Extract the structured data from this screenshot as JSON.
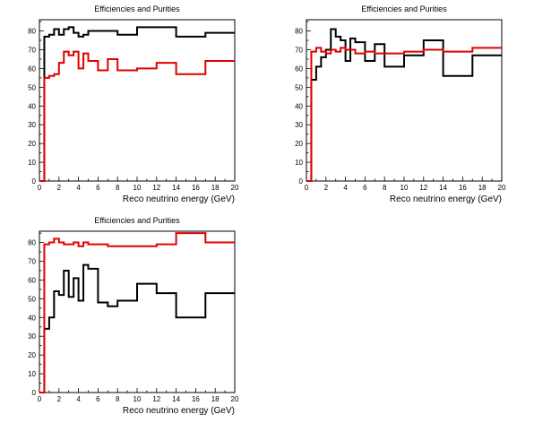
{
  "chart_data": [
    {
      "type": "line",
      "title": "Efficiencies and Purities",
      "xlabel": "Reco neutrino energy (GeV)",
      "ylabel": "",
      "xlim": [
        0,
        20
      ],
      "ylim": [
        0,
        86
      ],
      "xticks": [
        "0",
        "2",
        "4",
        "6",
        "8",
        "10",
        "12",
        "14",
        "16",
        "18",
        "20"
      ],
      "yticks": [
        "0",
        "10",
        "20",
        "30",
        "40",
        "50",
        "60",
        "70",
        "80"
      ],
      "series": [
        {
          "color": "#000000",
          "edges": [
            0,
            0.5,
            1,
            1.5,
            2,
            2.5,
            3,
            3.5,
            4,
            4.5,
            5,
            6,
            7,
            8,
            10,
            12,
            14,
            17,
            20
          ],
          "values": [
            0,
            77,
            78,
            81,
            78,
            81,
            82,
            79,
            77,
            78,
            80,
            80,
            80,
            78,
            82,
            82,
            77,
            79
          ]
        },
        {
          "color": "#e00000",
          "edges": [
            0,
            0.5,
            1,
            1.5,
            2,
            2.5,
            3,
            3.5,
            4,
            4.5,
            5,
            6,
            7,
            8,
            10,
            12,
            14,
            17,
            20
          ],
          "values": [
            0,
            55,
            56,
            57,
            63,
            69,
            67,
            69,
            60,
            68,
            64,
            59,
            65,
            59,
            60,
            63,
            57,
            64
          ]
        }
      ]
    },
    {
      "type": "line",
      "title": "Efficiencies and Purities",
      "xlabel": "Reco neutrino energy (GeV)",
      "ylabel": "",
      "xlim": [
        0,
        20
      ],
      "ylim": [
        0,
        86
      ],
      "xticks": [
        "0",
        "2",
        "4",
        "6",
        "8",
        "10",
        "12",
        "14",
        "16",
        "18",
        "20"
      ],
      "yticks": [
        "0",
        "10",
        "20",
        "30",
        "40",
        "50",
        "60",
        "70",
        "80"
      ],
      "series": [
        {
          "color": "#000000",
          "edges": [
            0,
            0.5,
            1,
            1.5,
            2,
            2.5,
            3,
            3.5,
            4,
            4.5,
            5,
            6,
            7,
            8,
            10,
            12,
            14,
            17,
            20
          ],
          "values": [
            0,
            54,
            61,
            66,
            70,
            81,
            77,
            75,
            64,
            76,
            74,
            64,
            73,
            61,
            67,
            75,
            56,
            67
          ]
        },
        {
          "color": "#e00000",
          "edges": [
            0,
            0.5,
            1,
            1.5,
            2,
            2.5,
            3,
            3.5,
            4,
            4.5,
            5,
            6,
            7,
            8,
            10,
            12,
            14,
            17,
            20
          ],
          "values": [
            0,
            69,
            71,
            69,
            68,
            70,
            69,
            71,
            70,
            70,
            68,
            69,
            68,
            68,
            69,
            70,
            69,
            71
          ]
        }
      ]
    },
    {
      "type": "line",
      "title": "Efficiencies and Purities",
      "xlabel": "Reco neutrino energy (GeV)",
      "ylabel": "",
      "xlim": [
        0,
        20
      ],
      "ylim": [
        0,
        86
      ],
      "xticks": [
        "0",
        "2",
        "4",
        "6",
        "8",
        "10",
        "12",
        "14",
        "16",
        "18",
        "20"
      ],
      "yticks": [
        "0",
        "10",
        "20",
        "30",
        "40",
        "50",
        "60",
        "70",
        "80"
      ],
      "series": [
        {
          "color": "#000000",
          "edges": [
            0,
            0.5,
            1,
            1.5,
            2,
            2.5,
            3,
            3.5,
            4,
            4.5,
            5,
            6,
            7,
            8,
            10,
            12,
            14,
            17,
            20
          ],
          "values": [
            0,
            34,
            40,
            54,
            52,
            65,
            51,
            61,
            49,
            68,
            66,
            48,
            46,
            49,
            58,
            53,
            40,
            53
          ]
        },
        {
          "color": "#e00000",
          "edges": [
            0,
            0.5,
            1,
            1.5,
            2,
            2.5,
            3,
            3.5,
            4,
            4.5,
            5,
            6,
            7,
            8,
            10,
            12,
            14,
            17,
            20
          ],
          "values": [
            0,
            79,
            80,
            82,
            80,
            79,
            79,
            80,
            78,
            80,
            79,
            79,
            78,
            78,
            78,
            79,
            85,
            80
          ]
        }
      ]
    }
  ]
}
